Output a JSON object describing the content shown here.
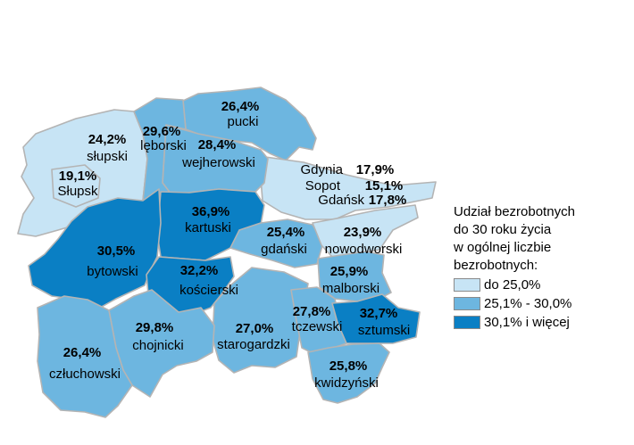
{
  "colors": {
    "low": "#c7e4f5",
    "mid": "#6db6e0",
    "high": "#0a7fc4",
    "border": "#b4b4b4"
  },
  "regions": {
    "slupski": {
      "name": "słupski",
      "value": "24,2%",
      "class": "low"
    },
    "slupsk": {
      "name": "Słupsk",
      "value": "19,1%",
      "class": "low"
    },
    "leborski": {
      "name": "lęborski",
      "value": "29,6%",
      "class": "mid"
    },
    "pucki": {
      "name": "pucki",
      "value": "26,4%",
      "class": "mid"
    },
    "wejherowski": {
      "name": "wejherowski",
      "value": "28,4%",
      "class": "mid"
    },
    "gdynia": {
      "name": "Gdynia",
      "value": "17,9%",
      "class": "low"
    },
    "sopot": {
      "name": "Sopot",
      "value": "15,1%",
      "class": "low"
    },
    "gdansk": {
      "name": "Gdańsk",
      "value": "17,8%",
      "class": "low"
    },
    "kartuski": {
      "name": "kartuski",
      "value": "36,9%",
      "class": "high"
    },
    "gdanski": {
      "name": "gdański",
      "value": "25,4%",
      "class": "mid"
    },
    "nowodworski": {
      "name": "nowodworski",
      "value": "23,9%",
      "class": "low"
    },
    "bytowski": {
      "name": "bytowski",
      "value": "30,5%",
      "class": "high"
    },
    "koscierski": {
      "name": "kościerski",
      "value": "32,2%",
      "class": "high"
    },
    "malborski": {
      "name": "malborski",
      "value": "25,9%",
      "class": "mid"
    },
    "tczewski": {
      "name": "tczewski",
      "value": "27,8%",
      "class": "mid"
    },
    "sztumski": {
      "name": "sztumski",
      "value": "32,7%",
      "class": "high"
    },
    "chojnicki": {
      "name": "chojnicki",
      "value": "29,8%",
      "class": "mid"
    },
    "starogardzki": {
      "name": "starogardzki",
      "value": "27,0%",
      "class": "mid"
    },
    "czluchowski": {
      "name": "człuchowski",
      "value": "26,4%",
      "class": "mid"
    },
    "kwidzynski": {
      "name": "kwidzyński",
      "value": "25,8%",
      "class": "mid"
    }
  },
  "legend": {
    "title_lines": [
      "Udział bezrobotnych",
      "do 30 roku życia",
      "w ogólnej liczbie",
      "bezrobotnych:"
    ],
    "items": [
      {
        "label": "do 25,0%",
        "color": "#c7e4f5"
      },
      {
        "label": "25,1% - 30,0%",
        "color": "#6db6e0"
      },
      {
        "label": "30,1% i więcej",
        "color": "#0a7fc4"
      }
    ]
  }
}
